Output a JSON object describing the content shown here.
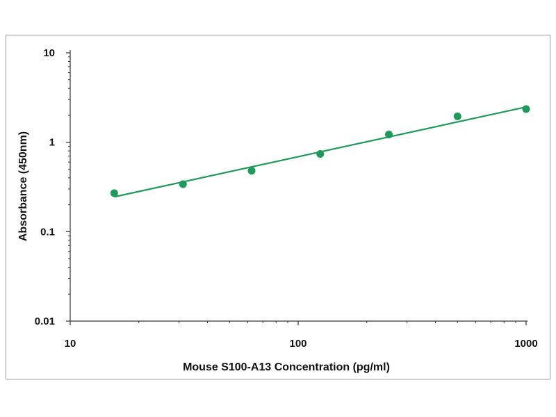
{
  "chart_data": {
    "type": "scatter",
    "title": "",
    "xlabel": "Mouse S100-A13 Concentration (pg/ml)",
    "ylabel": "Absorbance (450nm)",
    "x_scale": "log",
    "y_scale": "log",
    "xlim": [
      10,
      1000
    ],
    "ylim": [
      0.01,
      10
    ],
    "x_ticks": [
      "10",
      "100",
      "1000"
    ],
    "y_ticks": [
      "0.01",
      "0.1",
      "1",
      "10"
    ],
    "grid": false,
    "legend": "none",
    "series": [
      {
        "x": [
          15.6,
          31.25,
          62.5,
          125,
          250,
          500,
          1000
        ],
        "y": [
          0.27,
          0.34,
          0.48,
          0.74,
          1.22,
          1.95,
          2.35
        ]
      }
    ],
    "fit_line": {
      "x": [
        15.6,
        1000
      ],
      "y": [
        0.245,
        2.48
      ]
    },
    "colors": {
      "series": "#1f9a5a",
      "axis": "#333333"
    }
  }
}
